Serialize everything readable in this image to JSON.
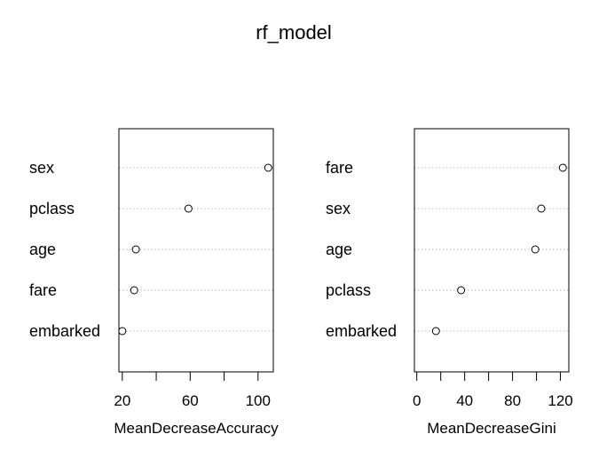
{
  "title": "rf_model",
  "chart_data": [
    {
      "type": "scatter",
      "subtype": "dotchart",
      "xlabel": "MeanDecreaseAccuracy",
      "categories": [
        "sex",
        "pclass",
        "age",
        "fare",
        "embarked"
      ],
      "values": [
        106,
        59,
        28,
        27,
        20
      ],
      "xlim": [
        18,
        109
      ],
      "xticks": [
        20,
        40,
        60,
        80,
        100
      ],
      "xtick_labels": [
        "20",
        "",
        "60",
        "",
        "100"
      ],
      "grid": "dotted horizontal"
    },
    {
      "type": "scatter",
      "subtype": "dotchart",
      "xlabel": "MeanDecreaseGini",
      "categories": [
        "fare",
        "sex",
        "age",
        "pclass",
        "embarked"
      ],
      "values": [
        122,
        104,
        99,
        37,
        16
      ],
      "xlim": [
        -2,
        127
      ],
      "xticks": [
        0,
        20,
        40,
        60,
        80,
        100,
        120
      ],
      "xtick_labels": [
        "0",
        "",
        "40",
        "",
        "80",
        "",
        "120"
      ],
      "grid": "dotted horizontal"
    }
  ]
}
